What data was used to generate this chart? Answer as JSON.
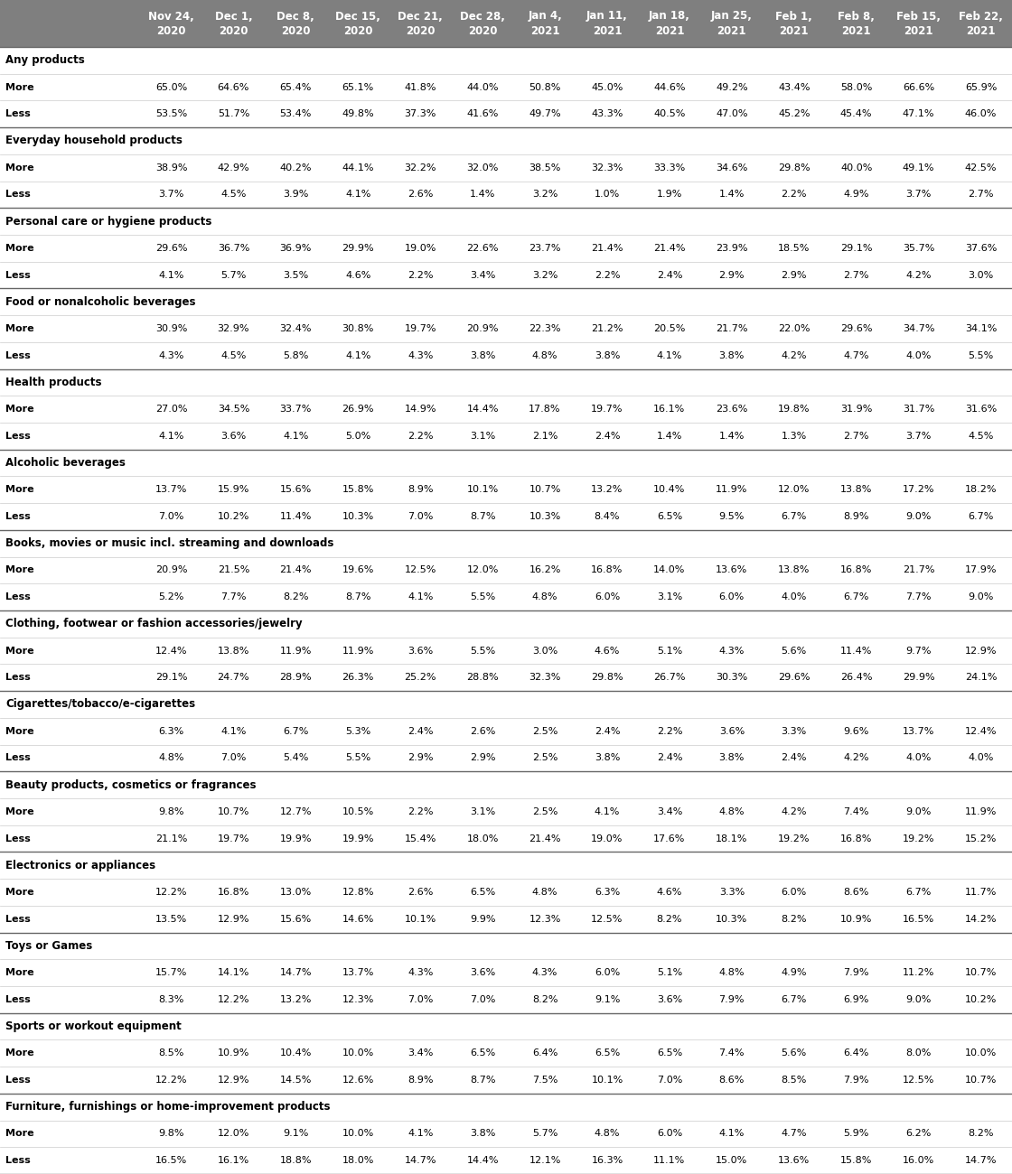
{
  "columns": [
    "Nov 24,\n2020",
    "Dec 1,\n2020",
    "Dec 8,\n2020",
    "Dec 15,\n2020",
    "Dec 21,\n2020",
    "Dec 28,\n2020",
    "Jan 4,\n2021",
    "Jan 11,\n2021",
    "Jan 18,\n2021",
    "Jan 25,\n2021",
    "Feb 1,\n2021",
    "Feb 8,\n2021",
    "Feb 15,\n2021",
    "Feb 22,\n2021"
  ],
  "header_bg": "#7f7f7f",
  "header_fg": "#ffffff",
  "sections": [
    {
      "category": "Any products",
      "more": [
        65.0,
        64.6,
        65.4,
        65.1,
        41.8,
        44.0,
        50.8,
        45.0,
        44.6,
        49.2,
        43.4,
        58.0,
        66.6,
        65.9
      ],
      "less": [
        53.5,
        51.7,
        53.4,
        49.8,
        37.3,
        41.6,
        49.7,
        43.3,
        40.5,
        47.0,
        45.2,
        45.4,
        47.1,
        46.0
      ]
    },
    {
      "category": "Everyday household products",
      "more": [
        38.9,
        42.9,
        40.2,
        44.1,
        32.2,
        32.0,
        38.5,
        32.3,
        33.3,
        34.6,
        29.8,
        40.0,
        49.1,
        42.5
      ],
      "less": [
        3.7,
        4.5,
        3.9,
        4.1,
        2.6,
        1.4,
        3.2,
        1.0,
        1.9,
        1.4,
        2.2,
        4.9,
        3.7,
        2.7
      ]
    },
    {
      "category": "Personal care or hygiene products",
      "more": [
        29.6,
        36.7,
        36.9,
        29.9,
        19.0,
        22.6,
        23.7,
        21.4,
        21.4,
        23.9,
        18.5,
        29.1,
        35.7,
        37.6
      ],
      "less": [
        4.1,
        5.7,
        3.5,
        4.6,
        2.2,
        3.4,
        3.2,
        2.2,
        2.4,
        2.9,
        2.9,
        2.7,
        4.2,
        3.0
      ]
    },
    {
      "category": "Food or nonalcoholic beverages",
      "more": [
        30.9,
        32.9,
        32.4,
        30.8,
        19.7,
        20.9,
        22.3,
        21.2,
        20.5,
        21.7,
        22.0,
        29.6,
        34.7,
        34.1
      ],
      "less": [
        4.3,
        4.5,
        5.8,
        4.1,
        4.3,
        3.8,
        4.8,
        3.8,
        4.1,
        3.8,
        4.2,
        4.7,
        4.0,
        5.5
      ]
    },
    {
      "category": "Health products",
      "more": [
        27.0,
        34.5,
        33.7,
        26.9,
        14.9,
        14.4,
        17.8,
        19.7,
        16.1,
        23.6,
        19.8,
        31.9,
        31.7,
        31.6
      ],
      "less": [
        4.1,
        3.6,
        4.1,
        5.0,
        2.2,
        3.1,
        2.1,
        2.4,
        1.4,
        1.4,
        1.3,
        2.7,
        3.7,
        4.5
      ]
    },
    {
      "category": "Alcoholic beverages",
      "more": [
        13.7,
        15.9,
        15.6,
        15.8,
        8.9,
        10.1,
        10.7,
        13.2,
        10.4,
        11.9,
        12.0,
        13.8,
        17.2,
        18.2
      ],
      "less": [
        7.0,
        10.2,
        11.4,
        10.3,
        7.0,
        8.7,
        10.3,
        8.4,
        6.5,
        9.5,
        6.7,
        8.9,
        9.0,
        6.7
      ]
    },
    {
      "category": "Books, movies or music incl. streaming and downloads",
      "more": [
        20.9,
        21.5,
        21.4,
        19.6,
        12.5,
        12.0,
        16.2,
        16.8,
        14.0,
        13.6,
        13.8,
        16.8,
        21.7,
        17.9
      ],
      "less": [
        5.2,
        7.7,
        8.2,
        8.7,
        4.1,
        5.5,
        4.8,
        6.0,
        3.1,
        6.0,
        4.0,
        6.7,
        7.7,
        9.0
      ]
    },
    {
      "category": "Clothing, footwear or fashion accessories/jewelry",
      "more": [
        12.4,
        13.8,
        11.9,
        11.9,
        3.6,
        5.5,
        3.0,
        4.6,
        5.1,
        4.3,
        5.6,
        11.4,
        9.7,
        12.9
      ],
      "less": [
        29.1,
        24.7,
        28.9,
        26.3,
        25.2,
        28.8,
        32.3,
        29.8,
        26.7,
        30.3,
        29.6,
        26.4,
        29.9,
        24.1
      ]
    },
    {
      "category": "Cigarettes/tobacco/e-cigarettes",
      "more": [
        6.3,
        4.1,
        6.7,
        5.3,
        2.4,
        2.6,
        2.5,
        2.4,
        2.2,
        3.6,
        3.3,
        9.6,
        13.7,
        12.4
      ],
      "less": [
        4.8,
        7.0,
        5.4,
        5.5,
        2.9,
        2.9,
        2.5,
        3.8,
        2.4,
        3.8,
        2.4,
        4.2,
        4.0,
        4.0
      ]
    },
    {
      "category": "Beauty products, cosmetics or fragrances",
      "more": [
        9.8,
        10.7,
        12.7,
        10.5,
        2.2,
        3.1,
        2.5,
        4.1,
        3.4,
        4.8,
        4.2,
        7.4,
        9.0,
        11.9
      ],
      "less": [
        21.1,
        19.7,
        19.9,
        19.9,
        15.4,
        18.0,
        21.4,
        19.0,
        17.6,
        18.1,
        19.2,
        16.8,
        19.2,
        15.2
      ]
    },
    {
      "category": "Electronics or appliances",
      "more": [
        12.2,
        16.8,
        13.0,
        12.8,
        2.6,
        6.5,
        4.8,
        6.3,
        4.6,
        3.3,
        6.0,
        8.6,
        6.7,
        11.7
      ],
      "less": [
        13.5,
        12.9,
        15.6,
        14.6,
        10.1,
        9.9,
        12.3,
        12.5,
        8.2,
        10.3,
        8.2,
        10.9,
        16.5,
        14.2
      ]
    },
    {
      "category": "Toys or Games",
      "more": [
        15.7,
        14.1,
        14.7,
        13.7,
        4.3,
        3.6,
        4.3,
        6.0,
        5.1,
        4.8,
        4.9,
        7.9,
        11.2,
        10.7
      ],
      "less": [
        8.3,
        12.2,
        13.2,
        12.3,
        7.0,
        7.0,
        8.2,
        9.1,
        3.6,
        7.9,
        6.7,
        6.9,
        9.0,
        10.2
      ]
    },
    {
      "category": "Sports or workout equipment",
      "more": [
        8.5,
        10.9,
        10.4,
        10.0,
        3.4,
        6.5,
        6.4,
        6.5,
        6.5,
        7.4,
        5.6,
        6.4,
        8.0,
        10.0
      ],
      "less": [
        12.2,
        12.9,
        14.5,
        12.6,
        8.9,
        8.7,
        7.5,
        10.1,
        7.0,
        8.6,
        8.5,
        7.9,
        12.5,
        10.7
      ]
    },
    {
      "category": "Furniture, furnishings or home-improvement products",
      "more": [
        9.8,
        12.0,
        9.1,
        10.0,
        4.1,
        3.8,
        5.7,
        4.8,
        6.0,
        4.1,
        4.7,
        5.9,
        6.2,
        8.2
      ],
      "less": [
        16.5,
        16.1,
        18.8,
        18.0,
        14.7,
        14.4,
        12.1,
        16.3,
        11.1,
        15.0,
        13.6,
        15.8,
        16.0,
        14.7
      ]
    }
  ]
}
